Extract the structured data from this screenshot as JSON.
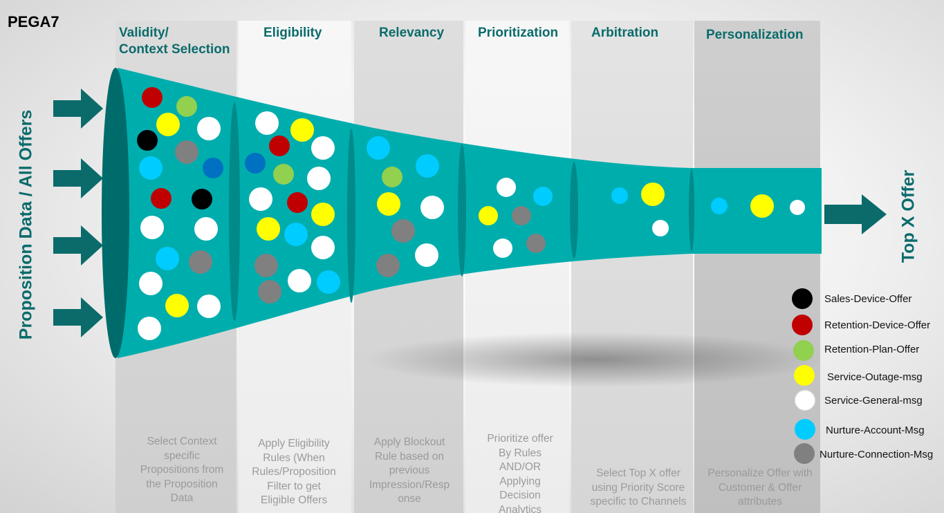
{
  "brand": "PEGA7",
  "left_label": "Proposition Data / All Offers",
  "right_label": "Top X Offer",
  "stages": [
    {
      "title_lines": [
        "Validity/",
        "Context Selection"
      ],
      "desc_lines": [
        "Select Context",
        "specific",
        "Propositions from",
        "the Proposition",
        "Data"
      ]
    },
    {
      "title_lines": [
        "Eligibility"
      ],
      "desc_lines": [
        "Apply Eligibility",
        "Rules (When",
        "Rules/Proposition",
        "Filter to get",
        "Eligible Offers"
      ]
    },
    {
      "title_lines": [
        "Relevancy"
      ],
      "desc_lines": [
        "Apply Blockout",
        "Rule based on",
        "previous",
        "Impression/Resp",
        "onse"
      ]
    },
    {
      "title_lines": [
        "Prioritization"
      ],
      "desc_lines": [
        "Prioritize offer",
        "By Rules",
        "AND/OR",
        "Applying",
        "Decision",
        "Analytics"
      ]
    },
    {
      "title_lines": [
        "Arbitration"
      ],
      "desc_lines": [
        "Select Top X offer",
        "using Priority Score",
        "specific to Channels"
      ]
    },
    {
      "title_lines": [
        "Personalization"
      ],
      "desc_lines": [
        "Personalize Offer with",
        "Customer & Offer",
        "attributes"
      ]
    }
  ],
  "legend": [
    {
      "label": "Sales-Device-Offer",
      "color": "#000000"
    },
    {
      "label": "Retention-Device-Offer",
      "color": "#c00000"
    },
    {
      "label": "Retention-Plan-Offer",
      "color": "#92d050"
    },
    {
      "label": "Service-Outage-msg",
      "color": "#ffff00"
    },
    {
      "label": "Service-General-msg",
      "color": "#ffffff"
    },
    {
      "label": "Nurture-Account-Msg",
      "color": "#00ccff"
    },
    {
      "label": "Nurture-Connection-Msg",
      "color": "#808080"
    }
  ],
  "colors": {
    "funnel": "#00adad",
    "funnel_dark": "#006b6b",
    "arrow": "#0b6b6b",
    "title": "#0b6b6b",
    "desc": "#9a9a9a"
  },
  "offers_per_stage": [
    [
      "retention-device",
      "retention-plan",
      "service-outage",
      "service-general",
      "sales-device",
      "nurture-connection",
      "nurture-account",
      "nurture-account-dark",
      "retention-device",
      "sales-device",
      "service-general",
      "service-general",
      "nurture-account",
      "nurture-connection",
      "service-general",
      "service-outage",
      "service-general",
      "service-general"
    ],
    [
      "service-general",
      "service-outage",
      "retention-device",
      "service-general",
      "nurture-account-dark",
      "retention-plan",
      "service-general",
      "service-general",
      "retention-device",
      "service-outage",
      "service-outage",
      "nurture-account",
      "service-general",
      "nurture-connection",
      "nurture-connection",
      "service-general",
      "nurture-account"
    ],
    [
      "nurture-account",
      "nurture-account",
      "retention-plan",
      "service-outage",
      "service-general",
      "nurture-connection",
      "service-general",
      "nurture-connection"
    ],
    [
      "service-general",
      "nurture-account",
      "service-outage",
      "nurture-connection",
      "service-general",
      "nurture-connection"
    ],
    [
      "nurture-account",
      "service-outage",
      "service-general"
    ],
    [
      "nurture-account",
      "service-outage",
      "service-general"
    ]
  ]
}
